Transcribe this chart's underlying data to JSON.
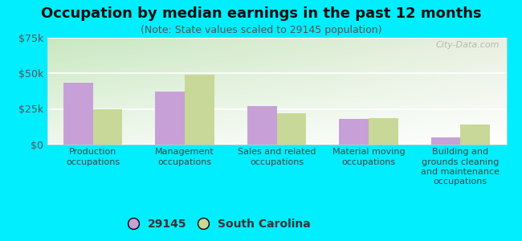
{
  "title": "Occupation by median earnings in the past 12 months",
  "subtitle": "(Note: State values scaled to 29145 population)",
  "categories": [
    "Production\noccupations",
    "Management\noccupations",
    "Sales and related\noccupations",
    "Material moving\noccupations",
    "Building and\ngrounds cleaning\nand maintenance\noccupations"
  ],
  "values_29145": [
    43000,
    37000,
    27000,
    18000,
    5000
  ],
  "values_sc": [
    25000,
    49000,
    22000,
    18500,
    14000
  ],
  "color_29145": "#c8a0d8",
  "color_sc": "#c8d898",
  "background_color": "#00eeff",
  "plot_bg_topleft": "#c8e8c0",
  "plot_bg_bottomright": "#ffffff",
  "ylim": [
    0,
    75000
  ],
  "yticks": [
    0,
    25000,
    50000,
    75000
  ],
  "ytick_labels": [
    "$0",
    "$25k",
    "$50k",
    "$75k"
  ],
  "legend_labels": [
    "29145",
    "South Carolina"
  ],
  "watermark": "City-Data.com",
  "title_fontsize": 13,
  "subtitle_fontsize": 9,
  "tick_fontsize": 9,
  "legend_fontsize": 10,
  "bar_width": 0.32
}
